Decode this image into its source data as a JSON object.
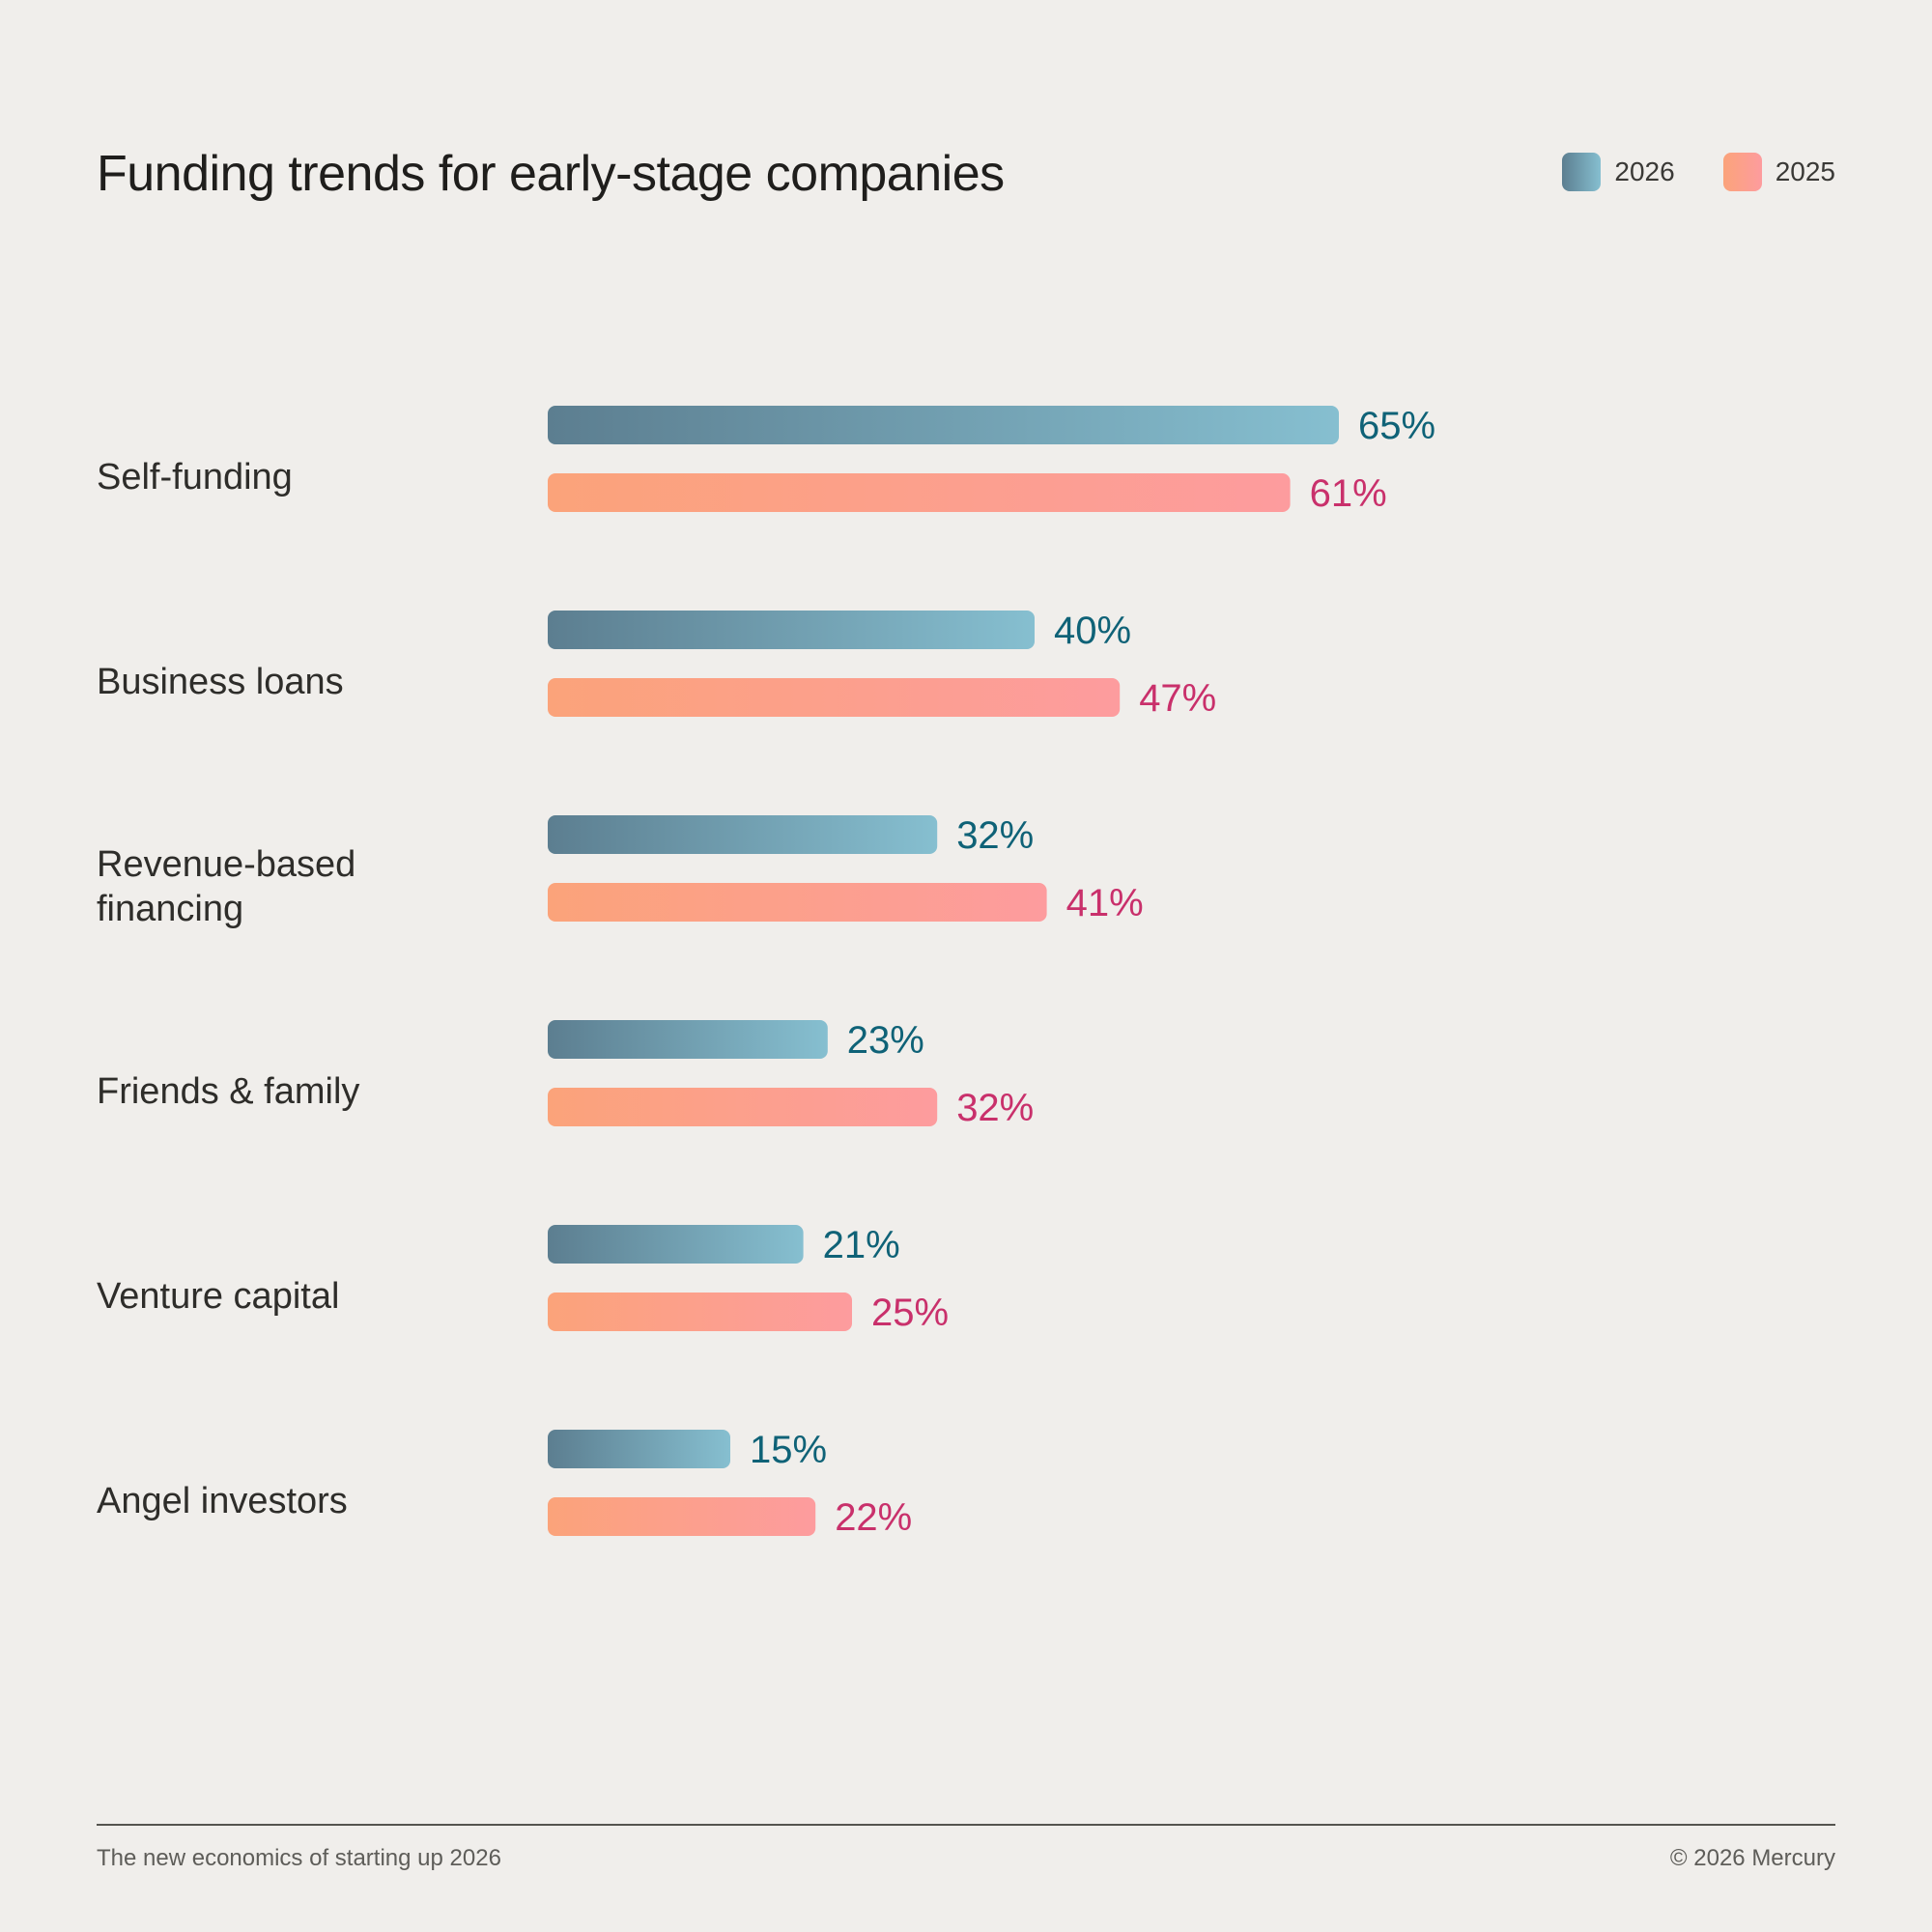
{
  "title": "Funding trends for early-stage companies",
  "legend": [
    {
      "label": "2026",
      "color_start": "#5c7e90",
      "color_end": "#86bfd0",
      "text_color": "#0f6277"
    },
    {
      "label": "2025",
      "color_start": "#fba37a",
      "color_end": "#fd9c9e",
      "text_color": "#c9306b"
    }
  ],
  "chart_data": {
    "type": "bar",
    "orientation": "horizontal",
    "title": "Funding trends for early-stage companies",
    "categories": [
      [
        "Self-funding"
      ],
      [
        "Business loans"
      ],
      [
        "Revenue-based",
        "financing"
      ],
      [
        "Friends & family"
      ],
      [
        "Venture capital"
      ],
      [
        "Angel investors"
      ]
    ],
    "series": [
      {
        "name": "2026",
        "values": [
          65,
          40,
          32,
          23,
          21,
          15
        ],
        "labels": [
          "65%",
          "40%",
          "32%",
          "23%",
          "21%",
          "15%"
        ]
      },
      {
        "name": "2025",
        "values": [
          61,
          47,
          41,
          32,
          25,
          22
        ],
        "labels": [
          "61%",
          "47%",
          "41%",
          "32%",
          "25%",
          "22%"
        ]
      }
    ],
    "unit": "%",
    "grid": false,
    "legend_position": "top-right"
  },
  "footer": {
    "left": "The new economics of starting up 2026",
    "right": "© 2026 Mercury"
  }
}
